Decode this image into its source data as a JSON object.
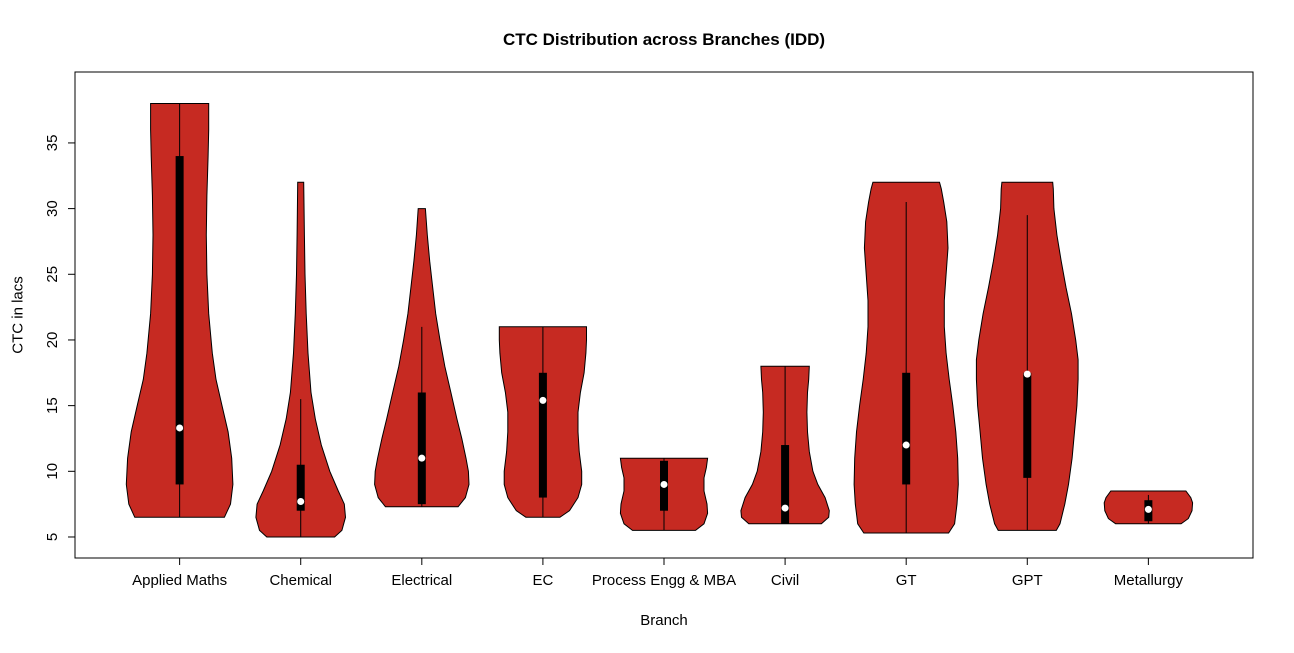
{
  "chart_data": {
    "type": "violin",
    "title": "CTC Distribution across Branches (IDD)",
    "xlabel": "Branch",
    "ylabel": "CTC in lacs",
    "categories": [
      "Applied Maths",
      "Chemical",
      "Electrical",
      "EC",
      "Process Engg & MBA",
      "Civil",
      "GT",
      "GPT",
      "Metallurgy"
    ],
    "y_ticks": [
      5,
      10,
      15,
      20,
      25,
      30,
      35
    ],
    "ylim": [
      3.4,
      40.4
    ],
    "grid": false,
    "legend": "none",
    "violin_fill": "#C62A22",
    "violin_stroke": "#000000",
    "box_color": "#000000",
    "median_color": "#ffffff",
    "series": [
      {
        "name": "Applied Maths",
        "min": 6.5,
        "max": 38,
        "q1": 9,
        "median": 13.3,
        "q3": 34,
        "whisker_low": 6.5,
        "whisker_high": 38,
        "shape": [
          [
            6.5,
            0.37
          ],
          [
            7.5,
            0.42
          ],
          [
            9,
            0.44
          ],
          [
            11,
            0.43
          ],
          [
            13,
            0.4
          ],
          [
            15,
            0.35
          ],
          [
            17,
            0.3
          ],
          [
            19,
            0.27
          ],
          [
            22,
            0.24
          ],
          [
            25,
            0.225
          ],
          [
            28,
            0.22
          ],
          [
            31,
            0.225
          ],
          [
            34,
            0.235
          ],
          [
            36,
            0.24
          ],
          [
            38,
            0.24
          ]
        ]
      },
      {
        "name": "Chemical",
        "min": 5,
        "max": 32,
        "q1": 7,
        "median": 7.7,
        "q3": 10.5,
        "whisker_low": 5,
        "whisker_high": 15.5,
        "shape": [
          [
            5,
            0.28
          ],
          [
            5.5,
            0.34
          ],
          [
            6.5,
            0.37
          ],
          [
            7.5,
            0.36
          ],
          [
            8.5,
            0.31
          ],
          [
            10,
            0.24
          ],
          [
            12,
            0.17
          ],
          [
            14,
            0.12
          ],
          [
            16,
            0.085
          ],
          [
            19,
            0.06
          ],
          [
            22,
            0.045
          ],
          [
            25,
            0.035
          ],
          [
            28,
            0.03
          ],
          [
            32,
            0.025
          ]
        ]
      },
      {
        "name": "Electrical",
        "min": 7.3,
        "max": 30,
        "q1": 7.5,
        "median": 11,
        "q3": 16,
        "whisker_low": 7.3,
        "whisker_high": 21,
        "shape": [
          [
            7.3,
            0.3
          ],
          [
            8,
            0.36
          ],
          [
            9,
            0.39
          ],
          [
            10,
            0.385
          ],
          [
            11,
            0.365
          ],
          [
            12.5,
            0.33
          ],
          [
            14,
            0.29
          ],
          [
            16,
            0.24
          ],
          [
            18,
            0.19
          ],
          [
            20,
            0.15
          ],
          [
            22,
            0.115
          ],
          [
            24,
            0.09
          ],
          [
            26,
            0.065
          ],
          [
            28,
            0.045
          ],
          [
            30,
            0.03
          ]
        ]
      },
      {
        "name": "EC",
        "min": 6.5,
        "max": 21,
        "q1": 8,
        "median": 15.4,
        "q3": 17.5,
        "whisker_low": 6.5,
        "whisker_high": 21,
        "shape": [
          [
            6.5,
            0.14
          ],
          [
            7,
            0.22
          ],
          [
            8,
            0.29
          ],
          [
            9,
            0.32
          ],
          [
            10,
            0.32
          ],
          [
            11.5,
            0.3
          ],
          [
            13,
            0.29
          ],
          [
            14.5,
            0.29
          ],
          [
            16,
            0.31
          ],
          [
            17.5,
            0.34
          ],
          [
            19,
            0.355
          ],
          [
            20,
            0.36
          ],
          [
            21,
            0.36
          ]
        ]
      },
      {
        "name": "Process Engg & MBA",
        "min": 5.5,
        "max": 11,
        "q1": 7,
        "median": 9,
        "q3": 10.8,
        "whisker_low": 5.5,
        "whisker_high": 11,
        "shape": [
          [
            5.5,
            0.26
          ],
          [
            6,
            0.33
          ],
          [
            6.8,
            0.36
          ],
          [
            7.5,
            0.355
          ],
          [
            8.5,
            0.33
          ],
          [
            9.5,
            0.33
          ],
          [
            10.3,
            0.35
          ],
          [
            11,
            0.36
          ]
        ]
      },
      {
        "name": "Civil",
        "min": 6,
        "max": 18,
        "q1": 6,
        "median": 7.2,
        "q3": 12,
        "whisker_low": 6,
        "whisker_high": 18,
        "shape": [
          [
            6,
            0.3
          ],
          [
            6.5,
            0.36
          ],
          [
            7,
            0.365
          ],
          [
            8,
            0.33
          ],
          [
            9,
            0.27
          ],
          [
            10,
            0.23
          ],
          [
            11.5,
            0.2
          ],
          [
            13,
            0.185
          ],
          [
            14.5,
            0.18
          ],
          [
            16,
            0.185
          ],
          [
            17,
            0.195
          ],
          [
            18,
            0.2
          ]
        ]
      },
      {
        "name": "GT",
        "min": 5.3,
        "max": 32,
        "q1": 9,
        "median": 12,
        "q3": 17.5,
        "whisker_low": 5.3,
        "whisker_high": 30.5,
        "shape": [
          [
            5.3,
            0.35
          ],
          [
            6,
            0.4
          ],
          [
            7.5,
            0.42
          ],
          [
            9,
            0.43
          ],
          [
            11,
            0.425
          ],
          [
            13,
            0.41
          ],
          [
            15,
            0.385
          ],
          [
            17,
            0.355
          ],
          [
            19,
            0.33
          ],
          [
            21,
            0.315
          ],
          [
            23,
            0.315
          ],
          [
            25,
            0.33
          ],
          [
            27,
            0.345
          ],
          [
            29,
            0.335
          ],
          [
            30.5,
            0.31
          ],
          [
            31.5,
            0.29
          ],
          [
            32,
            0.275
          ]
        ]
      },
      {
        "name": "GPT",
        "min": 5.5,
        "max": 32,
        "q1": 9.5,
        "median": 17.4,
        "q3": 17.5,
        "whisker_low": 5.5,
        "whisker_high": 29.5,
        "shape": [
          [
            5.5,
            0.24
          ],
          [
            6,
            0.27
          ],
          [
            7.5,
            0.31
          ],
          [
            9,
            0.34
          ],
          [
            11,
            0.37
          ],
          [
            13,
            0.39
          ],
          [
            15,
            0.41
          ],
          [
            17,
            0.42
          ],
          [
            18.5,
            0.42
          ],
          [
            20,
            0.4
          ],
          [
            22,
            0.365
          ],
          [
            24,
            0.32
          ],
          [
            26,
            0.28
          ],
          [
            28,
            0.245
          ],
          [
            30,
            0.22
          ],
          [
            31.5,
            0.215
          ],
          [
            32,
            0.21
          ]
        ]
      },
      {
        "name": "Metallurgy",
        "min": 6,
        "max": 8.5,
        "q1": 6.2,
        "median": 7.1,
        "q3": 7.8,
        "whisker_low": 6,
        "whisker_high": 8.2,
        "shape": [
          [
            6,
            0.27
          ],
          [
            6.4,
            0.33
          ],
          [
            7,
            0.36
          ],
          [
            7.6,
            0.365
          ],
          [
            8,
            0.35
          ],
          [
            8.5,
            0.31
          ]
        ]
      }
    ]
  }
}
